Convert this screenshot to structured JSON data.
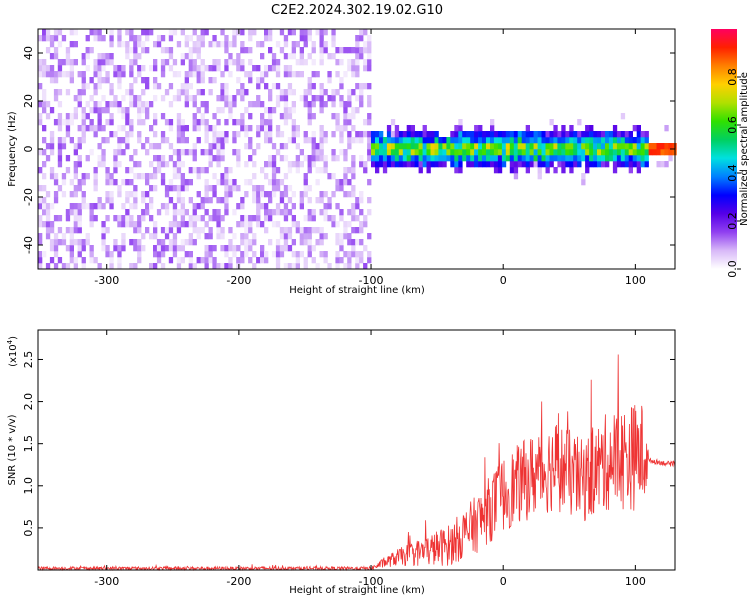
{
  "title": "C2E2.2024.302.19.02.G10",
  "chart_data": [
    {
      "type": "heatmap",
      "xlabel": "Height of straight line (km)",
      "ylabel": "Frequency (Hz)",
      "xlim": [
        -352,
        130
      ],
      "ylim": [
        -50,
        50
      ],
      "x_ticks": [
        -300,
        -200,
        -100,
        0,
        100
      ],
      "y_ticks": [
        -40,
        -20,
        0,
        20,
        40
      ],
      "colorbar": {
        "label": "Normalized spectral amplitude",
        "range": [
          0.0,
          1.0
        ],
        "ticks": [
          "0.0",
          "0.2",
          "0.4",
          "0.6",
          "0.8"
        ],
        "colors": [
          "#ffffff",
          "#d8b8f8",
          "#9040f0",
          "#5500e8",
          "#0000ff",
          "#0080ff",
          "#00e0e0",
          "#00d060",
          "#30e000",
          "#b0e000",
          "#ffd000",
          "#ff8000",
          "#ff2000",
          "#ff0060"
        ]
      },
      "regions": [
        {
          "x_range": [
            -352,
            -100
          ],
          "freq_range": [
            -50,
            50
          ],
          "amplitude": [
            0.02,
            0.15
          ]
        },
        {
          "x_range": [
            -100,
            108
          ],
          "freq_center": 0,
          "freq_halfwidth": 8,
          "amplitude": [
            0.15,
            0.8
          ]
        },
        {
          "x_range": [
            108,
            130
          ],
          "freq_center": 0,
          "freq_halfwidth": 3,
          "amplitude": [
            0.8,
            1.0
          ]
        }
      ]
    },
    {
      "type": "line",
      "xlabel": "Height of straight line (km)",
      "ylabel": "SNR (10 * v/v)",
      "y_scale_note": "(x10",
      "y_scale_exp": "4",
      "xlim": [
        -352,
        130
      ],
      "ylim": [
        0,
        2.85
      ],
      "x_ticks": [
        -300,
        -200,
        -100,
        0,
        100
      ],
      "y_ticks": [
        "0.5",
        "1.0",
        "1.5",
        "2.0",
        "2.5"
      ],
      "color": "#ee3333",
      "series": [
        {
          "x": [
            -352,
            -300,
            -200,
            -100,
            -80,
            -60,
            -40,
            -20,
            0,
            20,
            40,
            60,
            80,
            100,
            108,
            110,
            130
          ],
          "y": [
            0.02,
            0.02,
            0.02,
            0.02,
            0.15,
            0.22,
            0.3,
            0.55,
            0.9,
            1.1,
            1.25,
            1.05,
            1.3,
            1.35,
            1.4,
            1.3,
            1.25
          ],
          "y_spread": [
            0.02,
            0.02,
            0.02,
            0.02,
            0.1,
            0.18,
            0.25,
            0.35,
            0.45,
            0.5,
            0.55,
            0.5,
            0.6,
            0.65,
            0.6,
            0.03,
            0.03
          ]
        }
      ]
    }
  ]
}
